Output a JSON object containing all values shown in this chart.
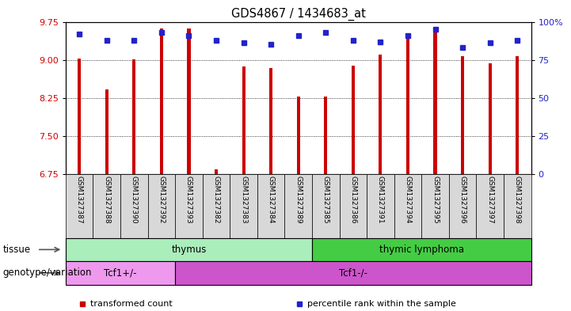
{
  "title": "GDS4867 / 1434683_at",
  "samples": [
    "GSM1327387",
    "GSM1327388",
    "GSM1327390",
    "GSM1327392",
    "GSM1327393",
    "GSM1327382",
    "GSM1327383",
    "GSM1327384",
    "GSM1327389",
    "GSM1327385",
    "GSM1327386",
    "GSM1327391",
    "GSM1327394",
    "GSM1327395",
    "GSM1327396",
    "GSM1327397",
    "GSM1327398"
  ],
  "bar_values": [
    9.02,
    8.42,
    9.01,
    9.62,
    9.62,
    6.85,
    8.87,
    8.84,
    8.28,
    8.28,
    8.88,
    9.1,
    9.47,
    9.62,
    9.08,
    8.93,
    9.07
  ],
  "dot_values": [
    92,
    88,
    88,
    93,
    91,
    88,
    86,
    85,
    91,
    93,
    88,
    87,
    91,
    95,
    83,
    86,
    88
  ],
  "ylim_left": [
    6.75,
    9.75
  ],
  "ylim_right": [
    0,
    100
  ],
  "yticks_left": [
    6.75,
    7.5,
    8.25,
    9.0,
    9.75
  ],
  "yticks_right": [
    0,
    25,
    50,
    75,
    100
  ],
  "grid_values": [
    7.5,
    8.25,
    9.0
  ],
  "bar_color": "#cc0000",
  "dot_color": "#2222cc",
  "bar_bottom": 6.75,
  "tissue_groups": [
    {
      "label": "thymus",
      "start": 0,
      "end": 9,
      "color": "#aaeebb"
    },
    {
      "label": "thymic lymphoma",
      "start": 9,
      "end": 17,
      "color": "#44cc44"
    }
  ],
  "genotype_groups": [
    {
      "label": "Tcf1+/-",
      "start": 0,
      "end": 4,
      "color": "#ee99ee"
    },
    {
      "label": "Tcf1-/-",
      "start": 4,
      "end": 17,
      "color": "#cc55cc"
    }
  ],
  "legend_items": [
    {
      "color": "#cc0000",
      "label": "transformed count"
    },
    {
      "color": "#2222cc",
      "label": "percentile rank within the sample"
    }
  ],
  "tissue_label": "tissue",
  "genotype_label": "genotype/variation",
  "sample_bg": "#d8d8d8",
  "right_ytick_labels": [
    "0",
    "25",
    "50",
    "75",
    "100%"
  ]
}
